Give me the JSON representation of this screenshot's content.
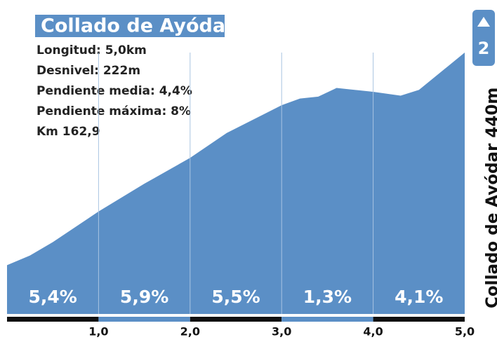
{
  "chart_data": {
    "type": "area",
    "title": "Collado de Ayódar",
    "info": [
      "Longitud: 5,0km",
      "Desnivel: 222m",
      "Pendiente media: 4,4%",
      "Pendiente máxima: 8%",
      "Km 162,9"
    ],
    "summit_label": "Collado de Ayódar 440m",
    "badge": "2",
    "color": "#5b8fc6",
    "x": [
      0,
      0.25,
      0.5,
      1.0,
      1.5,
      2.0,
      2.4,
      3.0,
      3.2,
      3.4,
      3.6,
      4.0,
      4.3,
      4.5,
      5.0
    ],
    "values": [
      218,
      228,
      242,
      274,
      303,
      330,
      356,
      385,
      392,
      394,
      403,
      399,
      395,
      401,
      440
    ],
    "xlim": [
      0,
      5
    ],
    "ylim": [
      167,
      440
    ],
    "xticks": [
      {
        "value": 1,
        "label": "1,0"
      },
      {
        "value": 2,
        "label": "2,0"
      },
      {
        "value": 3,
        "label": "3,0"
      },
      {
        "value": 4,
        "label": "4,0"
      },
      {
        "value": 5,
        "label": "5,0"
      }
    ],
    "segments": {
      "values": [
        5.4,
        5.9,
        5.5,
        1.3,
        4.1
      ],
      "value_labels": [
        "5,4%",
        "5,9%",
        "5,5%",
        "1,3%",
        "4,1%"
      ]
    }
  }
}
